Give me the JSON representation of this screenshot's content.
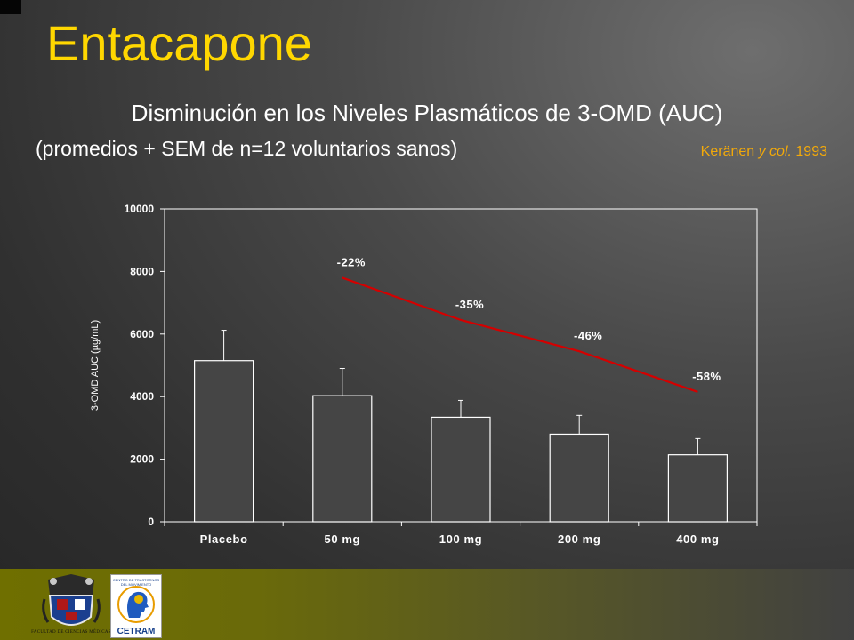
{
  "slide": {
    "title": "Entacapone",
    "subtitle": "Disminución en los Niveles Plasmáticos de 3-OMD (AUC)",
    "note": "(promedios + SEM de n=12  voluntarios sanos)",
    "citation": {
      "author": "Keränen ",
      "etal": "y col.",
      "year": " 1993"
    }
  },
  "footer": {
    "logo1_caption": "FACULTAD DE CIENCIAS MÉDICAS",
    "logo2_top": "CENTRO DE TRASTORNOS DEL MOVIMIENTO",
    "logo2_label": "CETRAM"
  },
  "colors": {
    "title": "#ffd700",
    "citation": "#f2a90a",
    "trend_line": "#d40000",
    "bar_fill": "#454545",
    "axis": "#ffffff"
  },
  "chart_data": {
    "type": "bar",
    "categories": [
      "Placebo",
      "50 mg",
      "100 mg",
      "200 mg",
      "400 mg"
    ],
    "values": [
      5150,
      4030,
      3340,
      2800,
      2140
    ],
    "errors": [
      970,
      870,
      540,
      600,
      520
    ],
    "ylabel": "3-OMD AUC (µg/mL)",
    "ylim": [
      0,
      10000
    ],
    "yticks": [
      0,
      2000,
      4000,
      6000,
      8000,
      10000
    ],
    "grid": false,
    "trend": {
      "x_categories": [
        "50 mg",
        "100 mg",
        "200 mg",
        "400 mg"
      ],
      "y": [
        7800,
        6450,
        5450,
        4150
      ],
      "labels": [
        "-22%",
        "-35%",
        "-46%",
        "-58%"
      ]
    }
  }
}
